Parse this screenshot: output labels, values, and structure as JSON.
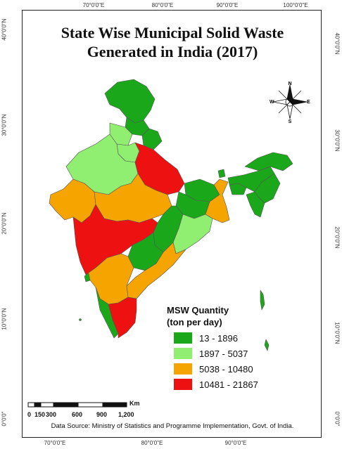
{
  "map": {
    "title_line1": "State Wise Municipal Solid Waste",
    "title_line2": "Generated in India (2017)",
    "data_source": "Data Source: Ministry of Statistics and Programme Implementation, Govt. of India.",
    "legend": {
      "title_line1": "MSW Quantity",
      "title_line2": "(ton per day)",
      "classes": [
        {
          "label": "13 - 1896",
          "color": "#1aa81a"
        },
        {
          "label": "1897 - 5037",
          "color": "#90ee70"
        },
        {
          "label": "5038 - 10480",
          "color": "#f6a400"
        },
        {
          "label": "10481 - 21867",
          "color": "#ee1111"
        }
      ]
    },
    "grid": {
      "longitudes": [
        "70°0'0\"E",
        "80°0'0\"E",
        "90°0'0\"E",
        "100°0'0\"E"
      ],
      "bottom_longitudes": [
        "70°0'0\"E",
        "80°0'0\"E",
        "90°0'0\"E"
      ],
      "latitudes": [
        "40°0'0\"N",
        "30°0'0\"N",
        "20°0'0\"N",
        "10°0'0\"N",
        "0°0'0\""
      ]
    },
    "compass": {
      "n": "N",
      "s": "S",
      "e": "E",
      "w": "W"
    },
    "scale": {
      "unit": "Km",
      "ticks": [
        "0",
        "150",
        "300",
        "600",
        "900",
        "1,200"
      ]
    }
  }
}
